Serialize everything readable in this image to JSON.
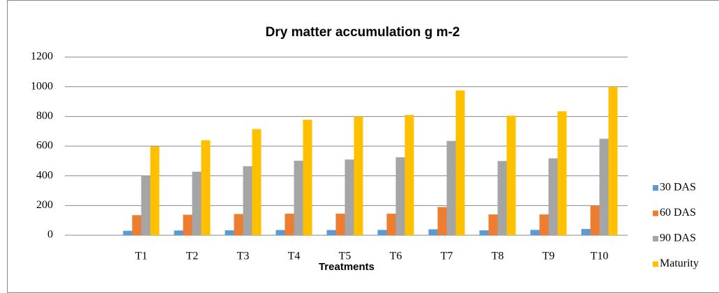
{
  "chart_data": {
    "type": "bar",
    "title": "Dry matter accumulation g m-2",
    "x_label": "Treatments",
    "categories": [
      null,
      "T1",
      "T2",
      "T3",
      "T4",
      "T5",
      "T6",
      "T7",
      "T8",
      "T9",
      "T10"
    ],
    "series": [
      {
        "name": "30 DAS",
        "color": "#5b9bd5",
        "values": [
          null,
          30,
          32,
          33,
          35,
          35,
          36,
          40,
          33,
          36,
          42
        ]
      },
      {
        "name": "60 DAS",
        "color": "#ed7d31",
        "values": [
          null,
          135,
          138,
          143,
          145,
          145,
          145,
          190,
          140,
          140,
          198
        ]
      },
      {
        "name": "90 DAS",
        "color": "#a5a5a5",
        "values": [
          null,
          400,
          428,
          465,
          502,
          510,
          525,
          635,
          500,
          518,
          650
        ]
      },
      {
        "name": "Maturity",
        "color": "#ffc000",
        "values": [
          null,
          598,
          640,
          715,
          778,
          800,
          810,
          975,
          805,
          835,
          1000
        ]
      }
    ],
    "ylim": [
      0,
      1200
    ],
    "yticks": [
      0,
      200,
      400,
      600,
      800,
      1000,
      1200
    ],
    "grid": true,
    "legend": "right"
  }
}
